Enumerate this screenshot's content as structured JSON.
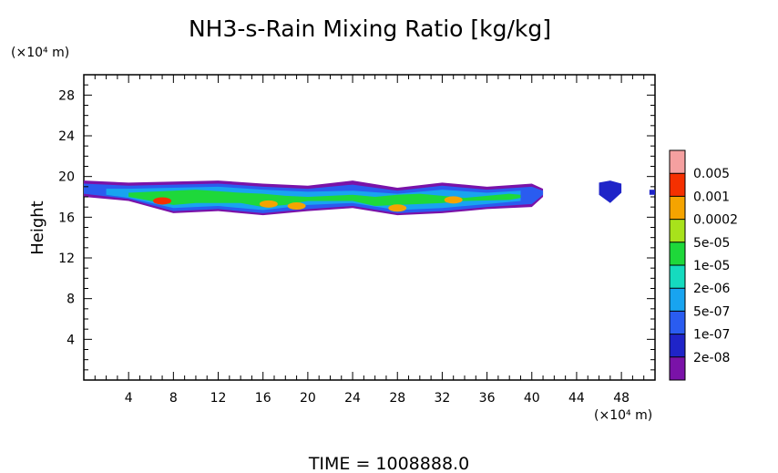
{
  "chart_data": {
    "type": "heatmap",
    "title": "NH3-s-Rain Mixing Ratio [kg/kg]",
    "xlabel": "",
    "ylabel": "Height",
    "x_unit": "(×10⁴ m)",
    "y_unit": "(×10⁴ m)",
    "xlim": [
      0,
      51
    ],
    "ylim": [
      0,
      30
    ],
    "x_ticks": [
      4,
      8,
      12,
      16,
      20,
      24,
      28,
      32,
      36,
      40,
      44,
      48
    ],
    "y_ticks": [
      4,
      8,
      12,
      16,
      20,
      24,
      28
    ],
    "colorbar": {
      "levels": [
        "2e-08",
        "1e-07",
        "5e-07",
        "2e-06",
        "1e-05",
        "5e-05",
        "0.0002",
        "0.001",
        "0.005"
      ],
      "colors": [
        "#7a12a8",
        "#1f24c8",
        "#2a5cf0",
        "#18a4f0",
        "#15dbbf",
        "#1ed83a",
        "#a8e21b",
        "#f5a400",
        "#f53000",
        "#f5a0a0"
      ]
    },
    "regions": [
      {
        "x": [
          0,
          4,
          8,
          12,
          16,
          20,
          24,
          28,
          32,
          36,
          40,
          41
        ],
        "ytop": [
          19.6,
          19.4,
          19.5,
          19.6,
          19.3,
          19.1,
          19.6,
          18.9,
          19.4,
          19.0,
          19.3,
          18.8
        ],
        "ybot": [
          18.0,
          17.6,
          16.4,
          16.6,
          16.2,
          16.6,
          16.9,
          16.2,
          16.4,
          16.8,
          17.0,
          18.0
        ],
        "level": 0
      },
      {
        "x": [
          0,
          4,
          8,
          12,
          16,
          20,
          24,
          28,
          32,
          36,
          40,
          41
        ],
        "ytop": [
          19.3,
          19.1,
          19.2,
          19.3,
          19.0,
          18.8,
          19.2,
          18.6,
          19.1,
          18.7,
          19.0,
          18.6
        ],
        "ybot": [
          18.3,
          17.8,
          16.6,
          16.8,
          16.4,
          16.8,
          17.1,
          16.4,
          16.6,
          17.0,
          17.3,
          18.2
        ],
        "level": 2
      },
      {
        "x": [
          2,
          4,
          8,
          12,
          16,
          20,
          24,
          28,
          32,
          36,
          39
        ],
        "ytop": [
          18.8,
          18.8,
          18.9,
          19.0,
          18.7,
          18.5,
          18.6,
          18.3,
          18.7,
          18.4,
          18.6
        ],
        "ybot": [
          18.2,
          17.9,
          16.9,
          17.1,
          16.7,
          17.2,
          17.4,
          16.7,
          16.9,
          17.3,
          17.6
        ],
        "level": 3
      },
      {
        "x": [
          4,
          6,
          8,
          10,
          14,
          16,
          18,
          20,
          24,
          26,
          28,
          30,
          32,
          34,
          38,
          39
        ],
        "ytop": [
          18.4,
          18.5,
          18.6,
          18.7,
          18.4,
          18.3,
          18.1,
          18.0,
          18.2,
          18.0,
          18.2,
          18.3,
          18.1,
          17.9,
          18.3,
          18.2
        ],
        "ybot": [
          18.0,
          17.6,
          17.2,
          17.4,
          17.4,
          17.0,
          17.2,
          17.6,
          17.6,
          17.1,
          17.2,
          17.3,
          17.4,
          17.6,
          17.7,
          17.9
        ],
        "level": 5
      },
      {
        "x": [
          46,
          47,
          48
        ],
        "ytop": [
          19.4,
          19.6,
          19.3
        ],
        "ybot": [
          18.2,
          17.4,
          18.4
        ],
        "level": 1
      },
      {
        "x": [
          50.5,
          51
        ],
        "ytop": [
          18.7,
          18.7
        ],
        "ybot": [
          18.2,
          18.2
        ],
        "level": 1
      }
    ],
    "hotspots": [
      {
        "x": 7,
        "y": 17.6,
        "level": 8
      },
      {
        "x": 16.5,
        "y": 17.3,
        "level": 7
      },
      {
        "x": 19,
        "y": 17.1,
        "level": 7
      },
      {
        "x": 28,
        "y": 16.9,
        "level": 7
      },
      {
        "x": 33,
        "y": 17.7,
        "level": 7
      }
    ]
  },
  "footer": "TIME  =  1008888.0"
}
